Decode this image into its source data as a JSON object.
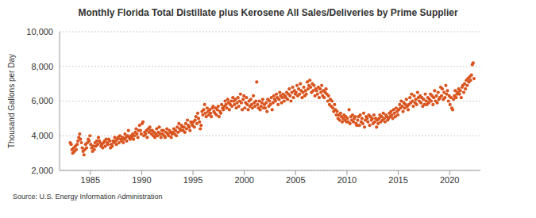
{
  "chart_data": {
    "type": "scatter",
    "title": "Monthly Florida Total Distillate plus Kerosene All Sales/Deliveries by Prime Supplier",
    "y_label": "Thousand Gallons per Day",
    "source": "Source: U.S. Energy Information Administration",
    "xlim": [
      1982,
      2023
    ],
    "xticks": [
      1985,
      1990,
      1995,
      2000,
      2005,
      2010,
      2015,
      2020
    ],
    "ylim": [
      2000,
      10000
    ],
    "yticks": [
      {
        "value": 2000,
        "label": "2,000"
      },
      {
        "value": 4000,
        "label": "4,000"
      },
      {
        "value": 6000,
        "label": "6,000"
      },
      {
        "value": 8000,
        "label": "8,000"
      },
      {
        "value": 10000,
        "label": "10,000"
      }
    ],
    "grid": true,
    "marker": "circle",
    "color": "#d9541e",
    "x": [
      1983.04,
      1983.13,
      1983.21,
      1983.29,
      1983.38,
      1983.46,
      1983.54,
      1983.63,
      1983.71,
      1983.79,
      1983.88,
      1983.96,
      1984.04,
      1984.13,
      1984.21,
      1984.29,
      1984.38,
      1984.46,
      1984.54,
      1984.63,
      1984.71,
      1984.79,
      1984.88,
      1984.96,
      1985.04,
      1985.13,
      1985.21,
      1985.29,
      1985.38,
      1985.46,
      1985.54,
      1985.63,
      1985.71,
      1985.79,
      1985.88,
      1985.96,
      1986.04,
      1986.13,
      1986.21,
      1986.29,
      1986.38,
      1986.46,
      1986.54,
      1986.63,
      1986.71,
      1986.79,
      1986.88,
      1986.96,
      1987.04,
      1987.13,
      1987.21,
      1987.29,
      1987.38,
      1987.46,
      1987.54,
      1987.63,
      1987.71,
      1987.79,
      1987.88,
      1987.96,
      1988.04,
      1988.13,
      1988.21,
      1988.29,
      1988.38,
      1988.46,
      1988.54,
      1988.63,
      1988.71,
      1988.79,
      1988.88,
      1988.96,
      1989.04,
      1989.13,
      1989.21,
      1989.29,
      1989.38,
      1989.46,
      1989.54,
      1989.63,
      1989.71,
      1989.79,
      1989.88,
      1989.96,
      1990.04,
      1990.13,
      1990.21,
      1990.29,
      1990.38,
      1990.46,
      1990.54,
      1990.63,
      1990.71,
      1990.79,
      1990.88,
      1990.96,
      1991.04,
      1991.13,
      1991.21,
      1991.29,
      1991.38,
      1991.46,
      1991.54,
      1991.63,
      1991.71,
      1991.79,
      1991.88,
      1991.96,
      1992.04,
      1992.13,
      1992.21,
      1992.29,
      1992.38,
      1992.46,
      1992.54,
      1992.63,
      1992.71,
      1992.79,
      1992.88,
      1992.96,
      1993.04,
      1993.13,
      1993.21,
      1993.29,
      1993.38,
      1993.46,
      1993.54,
      1993.63,
      1993.71,
      1993.79,
      1993.88,
      1993.96,
      1994.04,
      1994.13,
      1994.21,
      1994.29,
      1994.38,
      1994.46,
      1994.54,
      1994.63,
      1994.71,
      1994.79,
      1994.88,
      1994.96,
      1995.04,
      1995.13,
      1995.21,
      1995.29,
      1995.38,
      1995.46,
      1995.54,
      1995.63,
      1995.71,
      1995.79,
      1995.88,
      1995.96,
      1996.04,
      1996.13,
      1996.21,
      1996.29,
      1996.38,
      1996.46,
      1996.54,
      1996.63,
      1996.71,
      1996.79,
      1996.88,
      1996.96,
      1997.04,
      1997.13,
      1997.21,
      1997.29,
      1997.38,
      1997.46,
      1997.54,
      1997.63,
      1997.71,
      1997.79,
      1997.88,
      1997.96,
      1998.04,
      1998.13,
      1998.21,
      1998.29,
      1998.38,
      1998.46,
      1998.54,
      1998.63,
      1998.71,
      1998.79,
      1998.88,
      1998.96,
      1999.04,
      1999.13,
      1999.21,
      1999.29,
      1999.38,
      1999.46,
      1999.54,
      1999.63,
      1999.71,
      1999.79,
      1999.88,
      1999.96,
      2000.04,
      2000.13,
      2000.21,
      2000.29,
      2000.38,
      2000.46,
      2000.54,
      2000.63,
      2000.71,
      2000.79,
      2000.88,
      2000.96,
      2001.04,
      2001.13,
      2001.21,
      2001.29,
      2001.38,
      2001.46,
      2001.54,
      2001.63,
      2001.71,
      2001.79,
      2001.88,
      2001.96,
      2002.04,
      2002.13,
      2002.21,
      2002.29,
      2002.38,
      2002.46,
      2002.54,
      2002.63,
      2002.71,
      2002.79,
      2002.88,
      2002.96,
      2003.04,
      2003.13,
      2003.21,
      2003.29,
      2003.38,
      2003.46,
      2003.54,
      2003.63,
      2003.71,
      2003.79,
      2003.88,
      2003.96,
      2004.04,
      2004.13,
      2004.21,
      2004.29,
      2004.38,
      2004.46,
      2004.54,
      2004.63,
      2004.71,
      2004.79,
      2004.88,
      2004.96,
      2005.04,
      2005.13,
      2005.21,
      2005.29,
      2005.38,
      2005.46,
      2005.54,
      2005.63,
      2005.71,
      2005.79,
      2005.88,
      2005.96,
      2006.04,
      2006.13,
      2006.21,
      2006.29,
      2006.38,
      2006.46,
      2006.54,
      2006.63,
      2006.71,
      2006.79,
      2006.88,
      2006.96,
      2007.04,
      2007.13,
      2007.21,
      2007.29,
      2007.38,
      2007.46,
      2007.54,
      2007.63,
      2007.71,
      2007.79,
      2007.88,
      2007.96,
      2008.04,
      2008.13,
      2008.21,
      2008.29,
      2008.38,
      2008.46,
      2008.54,
      2008.63,
      2008.71,
      2008.79,
      2008.88,
      2008.96,
      2009.04,
      2009.13,
      2009.21,
      2009.29,
      2009.38,
      2009.46,
      2009.54,
      2009.63,
      2009.71,
      2009.79,
      2009.88,
      2009.96,
      2010.04,
      2010.13,
      2010.21,
      2010.29,
      2010.38,
      2010.46,
      2010.54,
      2010.63,
      2010.71,
      2010.79,
      2010.88,
      2010.96,
      2011.04,
      2011.13,
      2011.21,
      2011.29,
      2011.38,
      2011.46,
      2011.54,
      2011.63,
      2011.71,
      2011.79,
      2011.88,
      2011.96,
      2012.04,
      2012.13,
      2012.21,
      2012.29,
      2012.38,
      2012.46,
      2012.54,
      2012.63,
      2012.71,
      2012.79,
      2012.88,
      2012.96,
      2013.04,
      2013.13,
      2013.21,
      2013.29,
      2013.38,
      2013.46,
      2013.54,
      2013.63,
      2013.71,
      2013.79,
      2013.88,
      2013.96,
      2014.04,
      2014.13,
      2014.21,
      2014.29,
      2014.38,
      2014.46,
      2014.54,
      2014.63,
      2014.71,
      2014.79,
      2014.88,
      2014.96,
      2015.04,
      2015.13,
      2015.21,
      2015.29,
      2015.38,
      2015.46,
      2015.54,
      2015.63,
      2015.71,
      2015.79,
      2015.88,
      2015.96,
      2016.04,
      2016.13,
      2016.21,
      2016.29,
      2016.38,
      2016.46,
      2016.54,
      2016.63,
      2016.71,
      2016.79,
      2016.88,
      2016.96,
      2017.04,
      2017.13,
      2017.21,
      2017.29,
      2017.38,
      2017.46,
      2017.54,
      2017.63,
      2017.71,
      2017.79,
      2017.88,
      2017.96,
      2018.04,
      2018.13,
      2018.21,
      2018.29,
      2018.38,
      2018.46,
      2018.54,
      2018.63,
      2018.71,
      2018.79,
      2018.88,
      2018.96,
      2019.04,
      2019.13,
      2019.21,
      2019.29,
      2019.38,
      2019.46,
      2019.54,
      2019.63,
      2019.71,
      2019.79,
      2019.88,
      2019.96,
      2020.04,
      2020.13,
      2020.21,
      2020.29,
      2020.38,
      2020.46,
      2020.54,
      2020.63,
      2020.71,
      2020.79,
      2020.88,
      2020.96,
      2021.04,
      2021.13,
      2021.21,
      2021.29,
      2021.38,
      2021.46,
      2021.54,
      2021.63,
      2021.71,
      2021.79,
      2021.88,
      2021.96,
      2022.04,
      2022.13,
      2022.21,
      2022.29,
      2022.38
    ],
    "values": [
      3600,
      3500,
      3200,
      3000,
      3300,
      3100,
      3400,
      3200,
      3500,
      3700,
      3900,
      4100,
      3800,
      3600,
      3300,
      3100,
      2900,
      3200,
      3500,
      3300,
      3600,
      3800,
      3700,
      4000,
      3500,
      3300,
      3100,
      3400,
      3200,
      3600,
      3400,
      3700,
      3500,
      3900,
      3700,
      3600,
      3400,
      3500,
      3300,
      3600,
      3700,
      3400,
      3800,
      3600,
      3500,
      3800,
      3700,
      3300,
      3500,
      3400,
      3700,
      3600,
      3900,
      3700,
      3500,
      3800,
      3900,
      3600,
      4000,
      3800,
      3700,
      3900,
      3600,
      3800,
      4100,
      3900,
      3700,
      4000,
      4300,
      3900,
      3800,
      4000,
      3900,
      4100,
      3800,
      4000,
      4200,
      4400,
      4100,
      3900,
      4300,
      4600,
      4300,
      4100,
      4700,
      4800,
      4000,
      4200,
      4100,
      4300,
      3900,
      4400,
      4200,
      4500,
      4300,
      4100,
      4300,
      4000,
      4200,
      3900,
      4100,
      4400,
      4000,
      4200,
      4500,
      4100,
      3900,
      4300,
      4100,
      4300,
      4000,
      3900,
      4200,
      4400,
      4100,
      4000,
      4300,
      4200,
      3900,
      4100,
      4200,
      4400,
      4100,
      4300,
      4000,
      4500,
      4200,
      4700,
      4400,
      4300,
      4600,
      4500,
      4300,
      4500,
      4200,
      4700,
      4400,
      4900,
      4600,
      4500,
      4300,
      4800,
      4700,
      4600,
      4800,
      4500,
      4900,
      5100,
      4700,
      5300,
      5000,
      4800,
      4400,
      4600,
      5400,
      5200,
      5500,
      5800,
      5300,
      5100,
      5600,
      5400,
      5200,
      5500,
      5300,
      5100,
      5600,
      5700,
      5400,
      5300,
      5600,
      5200,
      5500,
      5700,
      5100,
      5400,
      5300,
      5800,
      5600,
      5500,
      5700,
      6000,
      5800,
      5600,
      6100,
      5900,
      5500,
      5800,
      6000,
      5700,
      6200,
      6000,
      5800,
      6100,
      5600,
      5900,
      6200,
      5700,
      6000,
      6400,
      5900,
      5500,
      6100,
      6300,
      5600,
      5900,
      6200,
      5800,
      5500,
      6000,
      5700,
      6100,
      5800,
      5600,
      6300,
      5900,
      5700,
      6000,
      7100,
      5800,
      5600,
      6000,
      5500,
      5700,
      5900,
      6100,
      5600,
      5800,
      5600,
      5900,
      5400,
      6100,
      5700,
      6000,
      5800,
      6200,
      5500,
      5900,
      6300,
      6100,
      6000,
      6400,
      6200,
      5800,
      6100,
      6500,
      6300,
      5900,
      6200,
      6400,
      6000,
      6300,
      6200,
      6500,
      6100,
      6400,
      6700,
      6300,
      6000,
      6500,
      6800,
      6200,
      6600,
      6400,
      6500,
      6900,
      6300,
      6700,
      6400,
      7000,
      6600,
      6200,
      6500,
      6800,
      6300,
      6600,
      6400,
      7100,
      6700,
      6900,
      7200,
      6800,
      6500,
      7000,
      6600,
      6900,
      6300,
      6700,
      6600,
      6400,
      6800,
      6200,
      6700,
      6500,
      6900,
      6300,
      6600,
      6200,
      6500,
      6700,
      6400,
      6000,
      6300,
      5800,
      6100,
      5700,
      6000,
      5600,
      5400,
      5800,
      5500,
      5200,
      5400,
      5000,
      5200,
      4900,
      5300,
      5100,
      4800,
      5000,
      5200,
      4900,
      5100,
      4800,
      5000,
      4800,
      5500,
      4700,
      5100,
      4900,
      5200,
      4800,
      5000,
      5100,
      4700,
      4600,
      4900,
      5100,
      4600,
      5200,
      4800,
      5000,
      4700,
      5300,
      4500,
      4900,
      5100,
      5000,
      4800,
      5200,
      4600,
      5100,
      4900,
      5000,
      4700,
      5200,
      4800,
      5000,
      4500,
      4900,
      4700,
      5000,
      5200,
      4800,
      5100,
      4900,
      5300,
      5000,
      4800,
      5200,
      5100,
      4900,
      5000,
      5300,
      5100,
      5400,
      5200,
      5000,
      5500,
      5300,
      5100,
      5600,
      5400,
      5200,
      5500,
      5800,
      5600,
      6000,
      5700,
      5400,
      5900,
      5600,
      5800,
      6100,
      5700,
      5500,
      5800,
      6200,
      5900,
      6400,
      6000,
      5700,
      6300,
      5900,
      6100,
      5800,
      6500,
      6200,
      6000,
      6300,
      5900,
      6200,
      5700,
      6100,
      5800,
      6400,
      6000,
      5800,
      6200,
      5900,
      6100,
      6400,
      6000,
      6300,
      5800,
      6200,
      6600,
      6000,
      6300,
      5900,
      6500,
      6100,
      6200,
      6800,
      6300,
      6700,
      6100,
      6500,
      6200,
      6900,
      6400,
      6600,
      6000,
      6300,
      5800,
      6200,
      5600,
      5500,
      6100,
      6300,
      6600,
      6200,
      6400,
      6500,
      6700,
      6400,
      6600,
      6200,
      6800,
      6900,
      6500,
      7000,
      6700,
      7200,
      6900,
      7300,
      7100,
      7400,
      7200,
      7500,
      8100,
      8200,
      7300
    ]
  }
}
